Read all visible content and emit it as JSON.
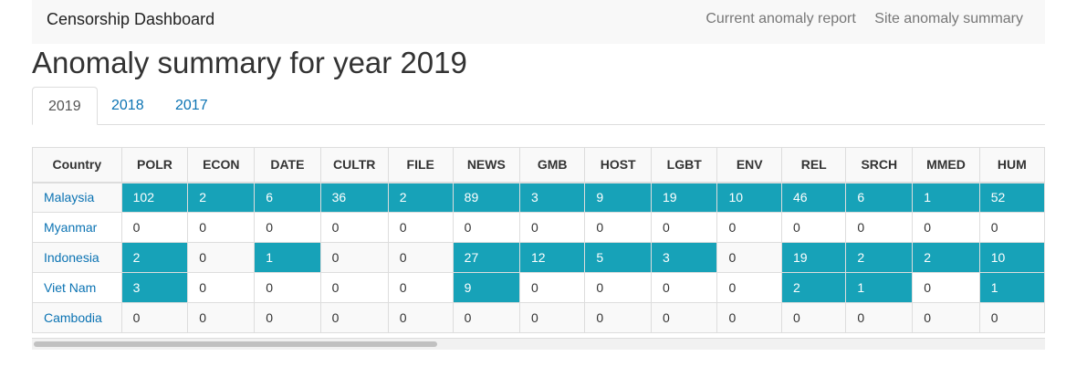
{
  "navbar": {
    "brand": "Censorship Dashboard",
    "links": [
      "Current anomaly report",
      "Site anomaly summary"
    ]
  },
  "page_title": "Anomaly summary for year 2019",
  "tabs": [
    {
      "label": "2019",
      "active": true
    },
    {
      "label": "2018",
      "active": false
    },
    {
      "label": "2017",
      "active": false
    }
  ],
  "table": {
    "headers": [
      "Country",
      "POLR",
      "ECON",
      "DATE",
      "CULTR",
      "FILE",
      "NEWS",
      "GMB",
      "HOST",
      "LGBT",
      "ENV",
      "REL",
      "SRCH",
      "MMED",
      "HUM"
    ],
    "rows": [
      {
        "country": "Malaysia",
        "values": [
          "102",
          "2",
          "6",
          "36",
          "2",
          "89",
          "3",
          "9",
          "19",
          "10",
          "46",
          "6",
          "1",
          "52"
        ]
      },
      {
        "country": "Myanmar",
        "values": [
          "0",
          "0",
          "0",
          "0",
          "0",
          "0",
          "0",
          "0",
          "0",
          "0",
          "0",
          "0",
          "0",
          "0"
        ]
      },
      {
        "country": "Indonesia",
        "values": [
          "2",
          "0",
          "1",
          "0",
          "0",
          "27",
          "12",
          "5",
          "3",
          "0",
          "19",
          "2",
          "2",
          "10"
        ]
      },
      {
        "country": "Viet Nam",
        "values": [
          "3",
          "0",
          "0",
          "0",
          "0",
          "9",
          "0",
          "0",
          "0",
          "0",
          "2",
          "1",
          "0",
          "1"
        ]
      },
      {
        "country": "Cambodia",
        "values": [
          "0",
          "0",
          "0",
          "0",
          "0",
          "0",
          "0",
          "0",
          "0",
          "0",
          "0",
          "0",
          "0",
          "0"
        ]
      }
    ]
  },
  "colors": {
    "highlight": "#17a2b8",
    "link": "#0b73b3"
  }
}
